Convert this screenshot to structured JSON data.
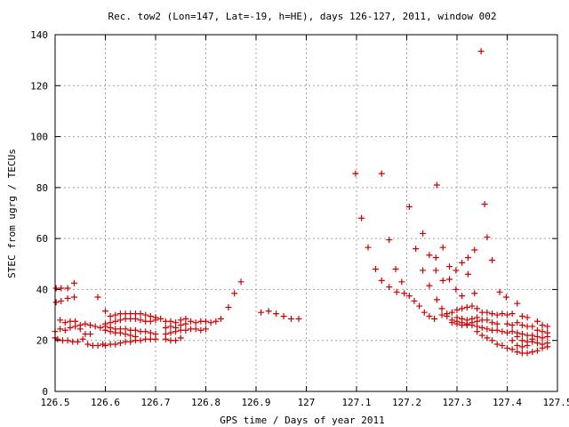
{
  "chart_data": {
    "type": "scatter",
    "title": "Rec. tow2 (Lon=147, Lat=-19, h=HE), days 126-127, 2011, window 002",
    "xlabel": "GPS time / Days of year 2011",
    "ylabel": "STEC from ugrg / TECUs",
    "xlim": [
      126.5,
      127.5
    ],
    "ylim": [
      0,
      140
    ],
    "x_ticks": [
      126.5,
      126.6,
      126.7,
      126.8,
      126.9,
      127.0,
      127.1,
      127.2,
      127.3,
      127.4,
      127.5
    ],
    "x_tick_labels": [
      "126.5",
      "126.6",
      "126.7",
      "126.8",
      "126.9",
      "127",
      "127.1",
      "127.2",
      "127.3",
      "127.4",
      "127.5"
    ],
    "y_ticks": [
      0,
      20,
      40,
      60,
      80,
      100,
      120,
      140
    ],
    "y_tick_labels": [
      "0",
      "20",
      "40",
      "60",
      "80",
      "100",
      "120",
      "140"
    ],
    "grid": true,
    "marker": "+",
    "color": "#cc0000",
    "series": [
      {
        "points": [
          [
            126.502,
            40.5
          ],
          [
            126.512,
            40.5
          ],
          [
            126.525,
            40.5
          ],
          [
            126.538,
            42.5
          ],
          [
            126.502,
            35.0
          ],
          [
            126.512,
            35.5
          ],
          [
            126.525,
            36.5
          ],
          [
            126.538,
            37.0
          ],
          [
            126.5,
            23.5
          ],
          [
            126.51,
            28.0
          ],
          [
            126.52,
            27.0
          ],
          [
            126.53,
            27.5
          ],
          [
            126.54,
            27.5
          ],
          [
            126.55,
            26.0
          ],
          [
            126.56,
            26.5
          ],
          [
            126.57,
            26.0
          ],
          [
            126.58,
            25.5
          ],
          [
            126.59,
            25.0
          ],
          [
            126.5,
            21.0
          ],
          [
            126.51,
            24.5
          ],
          [
            126.52,
            24.0
          ],
          [
            126.53,
            25.0
          ],
          [
            126.54,
            25.5
          ],
          [
            126.55,
            24.5
          ],
          [
            126.56,
            22.5
          ],
          [
            126.57,
            22.5
          ],
          [
            126.505,
            20.5
          ],
          [
            126.515,
            20.0
          ],
          [
            126.525,
            20.0
          ],
          [
            126.535,
            19.5
          ],
          [
            126.545,
            19.5
          ],
          [
            126.555,
            20.5
          ],
          [
            126.565,
            18.5
          ],
          [
            126.575,
            18.0
          ],
          [
            126.585,
            18.0
          ],
          [
            126.595,
            18.5
          ],
          [
            126.585,
            37.0
          ],
          [
            126.6,
            31.5
          ],
          [
            126.61,
            29.5
          ],
          [
            126.62,
            30.0
          ],
          [
            126.63,
            30.5
          ],
          [
            126.64,
            30.5
          ],
          [
            126.65,
            30.5
          ],
          [
            126.66,
            30.5
          ],
          [
            126.67,
            30.5
          ],
          [
            126.68,
            30.0
          ],
          [
            126.69,
            29.5
          ],
          [
            126.7,
            29.0
          ],
          [
            126.6,
            26.5
          ],
          [
            126.61,
            27.0
          ],
          [
            126.62,
            27.5
          ],
          [
            126.63,
            28.0
          ],
          [
            126.64,
            28.5
          ],
          [
            126.65,
            28.5
          ],
          [
            126.66,
            28.5
          ],
          [
            126.67,
            28.0
          ],
          [
            126.68,
            27.5
          ],
          [
            126.69,
            27.5
          ],
          [
            126.7,
            28.0
          ],
          [
            126.6,
            25.5
          ],
          [
            126.61,
            25.0
          ],
          [
            126.62,
            24.5
          ],
          [
            126.63,
            24.5
          ],
          [
            126.64,
            24.5
          ],
          [
            126.65,
            24.0
          ],
          [
            126.66,
            24.0
          ],
          [
            126.67,
            23.5
          ],
          [
            126.68,
            23.5
          ],
          [
            126.69,
            23.0
          ],
          [
            126.7,
            22.5
          ],
          [
            126.6,
            24.0
          ],
          [
            126.61,
            23.5
          ],
          [
            126.62,
            23.0
          ],
          [
            126.63,
            23.0
          ],
          [
            126.64,
            22.5
          ],
          [
            126.65,
            22.0
          ],
          [
            126.66,
            21.5
          ],
          [
            126.6,
            18.0
          ],
          [
            126.61,
            18.5
          ],
          [
            126.62,
            18.5
          ],
          [
            126.63,
            19.0
          ],
          [
            126.64,
            19.5
          ],
          [
            126.65,
            19.5
          ],
          [
            126.66,
            20.0
          ],
          [
            126.67,
            20.0
          ],
          [
            126.68,
            20.5
          ],
          [
            126.69,
            20.5
          ],
          [
            126.7,
            20.5
          ],
          [
            126.7,
            29.0
          ],
          [
            126.71,
            28.5
          ],
          [
            126.72,
            27.5
          ],
          [
            126.73,
            27.5
          ],
          [
            126.74,
            27.0
          ],
          [
            126.75,
            28.0
          ],
          [
            126.76,
            28.5
          ],
          [
            126.77,
            27.5
          ],
          [
            126.78,
            27.0
          ],
          [
            126.79,
            27.5
          ],
          [
            126.8,
            27.5
          ],
          [
            126.81,
            27.0
          ],
          [
            126.82,
            27.5
          ],
          [
            126.72,
            25.0
          ],
          [
            126.73,
            25.5
          ],
          [
            126.74,
            25.0
          ],
          [
            126.75,
            26.0
          ],
          [
            126.76,
            26.5
          ],
          [
            126.72,
            22.5
          ],
          [
            126.73,
            23.0
          ],
          [
            126.74,
            23.5
          ],
          [
            126.75,
            24.0
          ],
          [
            126.76,
            24.0
          ],
          [
            126.77,
            24.5
          ],
          [
            126.78,
            24.5
          ],
          [
            126.79,
            24.0
          ],
          [
            126.8,
            24.5
          ],
          [
            126.72,
            20.5
          ],
          [
            126.73,
            20.0
          ],
          [
            126.74,
            20.0
          ],
          [
            126.75,
            21.0
          ],
          [
            126.83,
            28.5
          ],
          [
            126.845,
            33.0
          ],
          [
            126.857,
            38.5
          ],
          [
            126.87,
            43.0
          ],
          [
            126.91,
            31.0
          ],
          [
            126.925,
            31.5
          ],
          [
            126.94,
            30.5
          ],
          [
            126.955,
            29.5
          ],
          [
            126.97,
            28.5
          ],
          [
            126.985,
            28.5
          ],
          [
            127.098,
            85.5
          ],
          [
            127.11,
            68.0
          ],
          [
            127.123,
            56.5
          ],
          [
            127.138,
            48.0
          ],
          [
            127.15,
            43.5
          ],
          [
            127.165,
            41.0
          ],
          [
            127.18,
            39.0
          ],
          [
            127.195,
            38.5
          ],
          [
            127.205,
            37.5
          ],
          [
            127.215,
            35.5
          ],
          [
            127.225,
            33.5
          ],
          [
            127.235,
            31.0
          ],
          [
            127.245,
            29.5
          ],
          [
            127.255,
            28.5
          ],
          [
            127.15,
            85.5
          ],
          [
            127.165,
            59.5
          ],
          [
            127.178,
            48.0
          ],
          [
            127.19,
            43.0
          ],
          [
            127.205,
            72.5
          ],
          [
            127.218,
            56.0
          ],
          [
            127.232,
            62.0
          ],
          [
            127.232,
            47.5
          ],
          [
            127.245,
            53.5
          ],
          [
            127.245,
            41.5
          ],
          [
            127.26,
            81.0
          ],
          [
            127.258,
            52.5
          ],
          [
            127.258,
            47.5
          ],
          [
            127.272,
            56.5
          ],
          [
            127.272,
            43.5
          ],
          [
            127.285,
            49.0
          ],
          [
            127.285,
            44.0
          ],
          [
            127.298,
            47.5
          ],
          [
            127.298,
            40.0
          ],
          [
            127.31,
            50.5
          ],
          [
            127.31,
            37.5
          ],
          [
            127.322,
            52.5
          ],
          [
            127.322,
            46.0
          ],
          [
            127.335,
            55.5
          ],
          [
            127.335,
            38.5
          ],
          [
            127.348,
            133.5
          ],
          [
            127.355,
            73.5
          ],
          [
            127.36,
            60.5
          ],
          [
            127.37,
            51.5
          ],
          [
            127.385,
            39.0
          ],
          [
            127.398,
            37.0
          ],
          [
            127.26,
            36.0
          ],
          [
            127.27,
            32.5
          ],
          [
            127.28,
            29.5
          ],
          [
            127.29,
            28.0
          ],
          [
            127.3,
            27.5
          ],
          [
            127.31,
            27.0
          ],
          [
            127.32,
            26.5
          ],
          [
            127.33,
            26.0
          ],
          [
            127.34,
            25.5
          ],
          [
            127.35,
            25.0
          ],
          [
            127.36,
            24.5
          ],
          [
            127.37,
            24.0
          ],
          [
            127.38,
            24.0
          ],
          [
            127.39,
            23.5
          ],
          [
            127.4,
            23.0
          ],
          [
            127.27,
            30.0
          ],
          [
            127.28,
            30.5
          ],
          [
            127.29,
            31.0
          ],
          [
            127.3,
            32.0
          ],
          [
            127.31,
            32.5
          ],
          [
            127.32,
            33.0
          ],
          [
            127.33,
            33.5
          ],
          [
            127.34,
            32.5
          ],
          [
            127.35,
            31.0
          ],
          [
            127.36,
            31.0
          ],
          [
            127.37,
            30.5
          ],
          [
            127.38,
            30.0
          ],
          [
            127.39,
            30.5
          ],
          [
            127.4,
            30.0
          ],
          [
            127.41,
            30.5
          ],
          [
            127.42,
            34.5
          ],
          [
            127.43,
            29.5
          ],
          [
            127.44,
            29.0
          ],
          [
            127.29,
            27.0
          ],
          [
            127.3,
            26.5
          ],
          [
            127.31,
            26.0
          ],
          [
            127.32,
            26.0
          ],
          [
            127.33,
            27.0
          ],
          [
            127.34,
            27.5
          ],
          [
            127.35,
            28.0
          ],
          [
            127.36,
            28.0
          ],
          [
            127.37,
            27.0
          ],
          [
            127.38,
            26.5
          ],
          [
            127.3,
            29.0
          ],
          [
            127.31,
            28.5
          ],
          [
            127.32,
            28.0
          ],
          [
            127.33,
            28.5
          ],
          [
            127.34,
            29.0
          ],
          [
            127.34,
            23.5
          ],
          [
            127.35,
            22.0
          ],
          [
            127.36,
            21.0
          ],
          [
            127.37,
            20.0
          ],
          [
            127.38,
            18.5
          ],
          [
            127.39,
            18.0
          ],
          [
            127.4,
            17.0
          ],
          [
            127.41,
            16.5
          ],
          [
            127.42,
            15.5
          ],
          [
            127.43,
            15.0
          ],
          [
            127.44,
            15.0
          ],
          [
            127.45,
            15.5
          ],
          [
            127.46,
            16.0
          ],
          [
            127.47,
            17.0
          ],
          [
            127.48,
            17.5
          ],
          [
            127.4,
            26.5
          ],
          [
            127.41,
            26.0
          ],
          [
            127.42,
            27.0
          ],
          [
            127.43,
            26.0
          ],
          [
            127.44,
            25.5
          ],
          [
            127.45,
            25.5
          ],
          [
            127.46,
            27.5
          ],
          [
            127.47,
            26.0
          ],
          [
            127.48,
            25.5
          ],
          [
            127.41,
            23.5
          ],
          [
            127.42,
            23.0
          ],
          [
            127.43,
            22.5
          ],
          [
            127.44,
            22.0
          ],
          [
            127.45,
            22.0
          ],
          [
            127.46,
            21.5
          ],
          [
            127.47,
            21.0
          ],
          [
            127.48,
            21.5
          ],
          [
            127.41,
            20.0
          ],
          [
            127.42,
            21.5
          ],
          [
            127.43,
            20.0
          ],
          [
            127.44,
            19.5
          ],
          [
            127.45,
            19.5
          ],
          [
            127.46,
            19.0
          ],
          [
            127.47,
            18.5
          ],
          [
            127.48,
            19.0
          ],
          [
            127.42,
            18.0
          ],
          [
            127.43,
            17.5
          ],
          [
            127.44,
            18.0
          ],
          [
            127.45,
            20.5
          ],
          [
            127.46,
            24.0
          ],
          [
            127.47,
            23.5
          ],
          [
            127.48,
            23.0
          ]
        ]
      }
    ]
  }
}
